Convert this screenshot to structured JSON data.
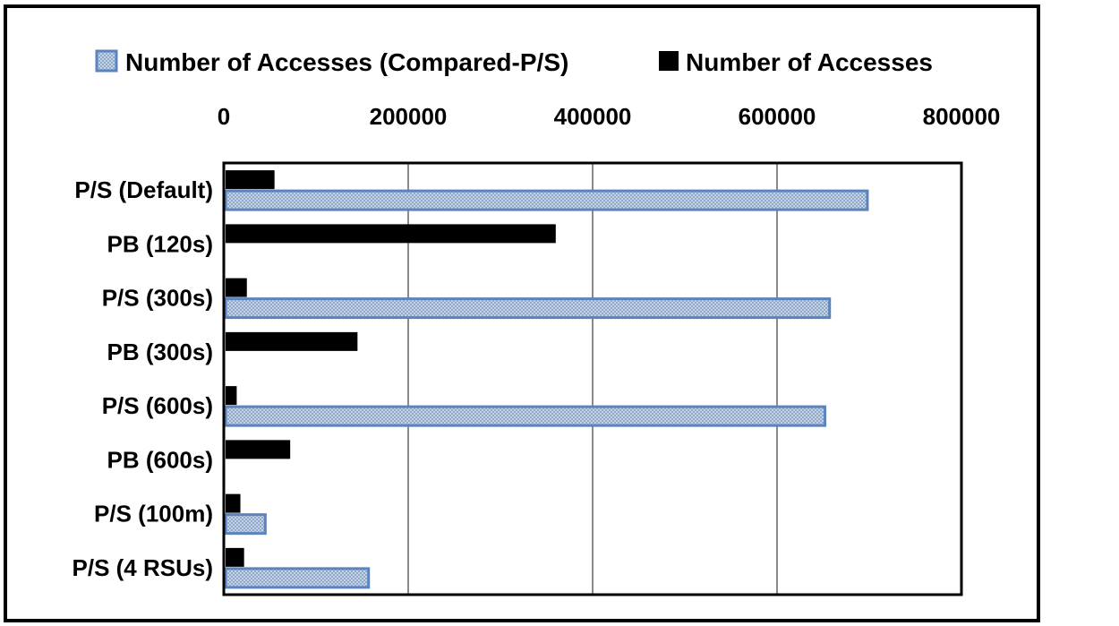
{
  "chart_data": {
    "type": "bar",
    "orientation": "horizontal",
    "image_is_mirrored_vertically": true,
    "categories": [
      "P/S (Default)",
      "PB (120s)",
      "P/S (300s)",
      "PB (300s)",
      "P/S (600s)",
      "PB (600s)",
      "P/S (100m)",
      "P/S (4 RSUs)"
    ],
    "series": [
      {
        "name": "Number of Accesses",
        "color": "#000000",
        "values": [
          55000,
          360000,
          25000,
          145000,
          14000,
          72000,
          18000,
          22000
        ]
      },
      {
        "name": "Number of Accesses (Compared-P/S)",
        "color": "#6f95c9",
        "values": [
          698000,
          null,
          657000,
          null,
          652000,
          null,
          45000,
          157000
        ]
      }
    ],
    "xlim": [
      0,
      800000
    ],
    "x_ticks": [
      "0",
      "200000",
      "400000",
      "600000",
      "800000"
    ],
    "grid": "vertical",
    "legend_position": "top",
    "axis_position": "top"
  }
}
